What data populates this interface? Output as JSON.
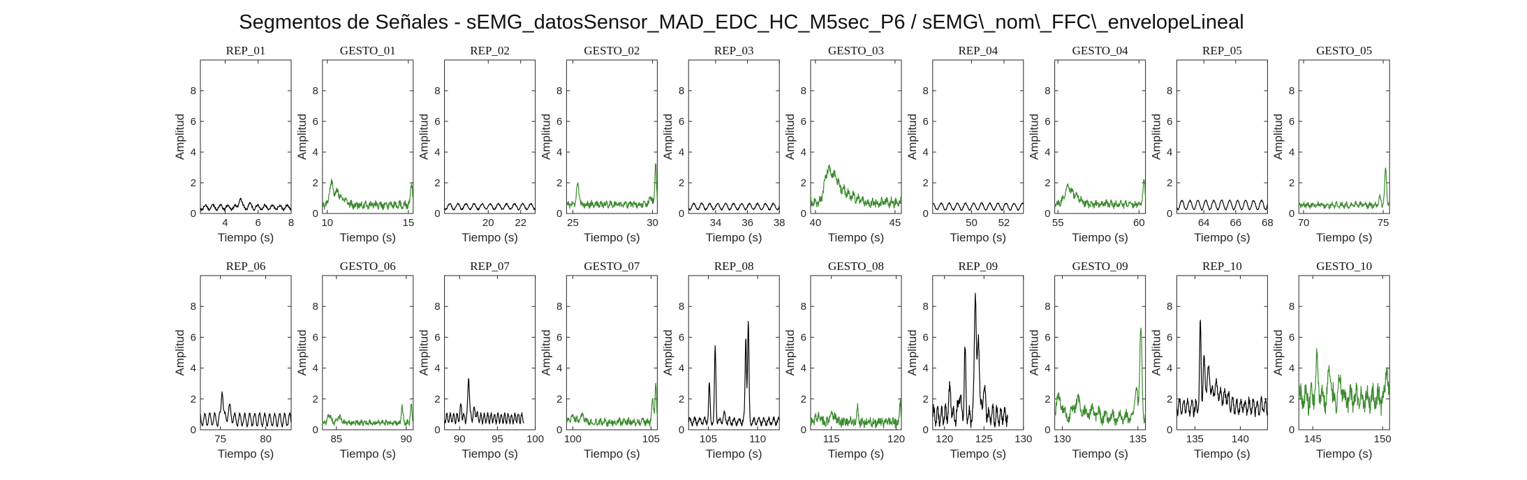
{
  "figure": {
    "title": "Segmentos de Señales - sEMG_datosSensor_MAD_EDC_HC_M5sec_P6 / sEMG\\_nom\\_FFC\\_envelopeLineal",
    "colors": {
      "rep": "#000000",
      "gesto": "#3b8a2e",
      "axis": "#262626"
    }
  },
  "chart_data": [
    {
      "type": "line",
      "subtitle": "REP_01",
      "xlabel": "Tiempo (s)",
      "ylabel": "Amplitud",
      "xlim": [
        2.5,
        8
      ],
      "ylim": [
        0,
        10
      ],
      "xticks": [
        4,
        6,
        8
      ],
      "yticks": [
        0,
        2,
        4,
        6,
        8
      ],
      "color": "rep",
      "series": [
        {
          "x": [
            2.5,
            8
          ],
          "base": 0.4,
          "amp": 0.15,
          "period": 0.45,
          "noise": 0.08,
          "peaks": [
            [
              4.9,
              1.05,
              0.08
            ],
            [
              5.5,
              0.55,
              0.1
            ]
          ]
        }
      ]
    },
    {
      "type": "line",
      "subtitle": "GESTO_01",
      "xlabel": "Tiempo (s)",
      "ylabel": "Amplitud",
      "xlim": [
        9.7,
        15.3
      ],
      "ylim": [
        0,
        10
      ],
      "xticks": [
        10,
        15
      ],
      "yticks": [
        0,
        2,
        4,
        6,
        8
      ],
      "color": "gesto",
      "series": [
        {
          "x": [
            9.7,
            15.3
          ],
          "base": 0.55,
          "amp": 0.12,
          "period": 0.3,
          "noise": 0.2,
          "peaks": [
            [
              10.25,
              1.9,
              0.12
            ],
            [
              10.6,
              1.4,
              0.15
            ],
            [
              11.0,
              0.9,
              0.2
            ],
            [
              15.2,
              2.0,
              0.06
            ]
          ]
        }
      ]
    },
    {
      "type": "line",
      "subtitle": "REP_02",
      "xlabel": "Tiempo (s)",
      "ylabel": "Amplitud",
      "xlim": [
        17.3,
        22.9
      ],
      "ylim": [
        0,
        10
      ],
      "xticks": [
        20,
        22
      ],
      "yticks": [
        0,
        2,
        4,
        6,
        8
      ],
      "color": "rep",
      "series": [
        {
          "x": [
            17.3,
            22.9
          ],
          "base": 0.45,
          "amp": 0.18,
          "period": 0.5,
          "noise": 0.05,
          "peaks": []
        }
      ]
    },
    {
      "type": "line",
      "subtitle": "GESTO_02",
      "xlabel": "Tiempo (s)",
      "ylabel": "Amplitud",
      "xlim": [
        24.6,
        30.3
      ],
      "ylim": [
        0,
        10
      ],
      "xticks": [
        25,
        30
      ],
      "yticks": [
        0,
        2,
        4,
        6,
        8
      ],
      "color": "gesto",
      "series": [
        {
          "x": [
            24.6,
            30.3
          ],
          "base": 0.6,
          "amp": 0.1,
          "period": 0.3,
          "noise": 0.18,
          "peaks": [
            [
              25.3,
              1.9,
              0.08
            ],
            [
              29.9,
              1.1,
              0.08
            ],
            [
              30.2,
              3.3,
              0.05
            ]
          ]
        }
      ]
    },
    {
      "type": "line",
      "subtitle": "REP_03",
      "xlabel": "Tiempo (s)",
      "ylabel": "Amplitud",
      "xlim": [
        32.3,
        38
      ],
      "ylim": [
        0,
        10
      ],
      "xticks": [
        34,
        36,
        38
      ],
      "yticks": [
        0,
        2,
        4,
        6,
        8
      ],
      "color": "rep",
      "series": [
        {
          "x": [
            32.3,
            38
          ],
          "base": 0.45,
          "amp": 0.2,
          "period": 0.5,
          "noise": 0.05,
          "peaks": []
        }
      ]
    },
    {
      "type": "line",
      "subtitle": "GESTO_03",
      "xlabel": "Tiempo (s)",
      "ylabel": "Amplitud",
      "xlim": [
        39.7,
        45.4
      ],
      "ylim": [
        0,
        10
      ],
      "xticks": [
        40,
        45
      ],
      "yticks": [
        0,
        2,
        4,
        6,
        8
      ],
      "color": "gesto",
      "series": [
        {
          "x": [
            39.7,
            45.4
          ],
          "base": 0.7,
          "amp": 0.15,
          "period": 0.3,
          "noise": 0.25,
          "peaks": [
            [
              40.75,
              2.5,
              0.2
            ],
            [
              41.2,
              2.2,
              0.25
            ],
            [
              41.8,
              1.4,
              0.3
            ],
            [
              42.5,
              1.0,
              0.3
            ]
          ]
        }
      ]
    },
    {
      "type": "line",
      "subtitle": "REP_04",
      "xlabel": "Tiempo (s)",
      "ylabel": "Amplitud",
      "xlim": [
        47.6,
        53.2
      ],
      "ylim": [
        0,
        10
      ],
      "xticks": [
        50,
        52
      ],
      "yticks": [
        0,
        2,
        4,
        6,
        8
      ],
      "color": "rep",
      "series": [
        {
          "x": [
            47.6,
            53.2
          ],
          "base": 0.45,
          "amp": 0.22,
          "period": 0.5,
          "noise": 0.04,
          "peaks": []
        }
      ]
    },
    {
      "type": "line",
      "subtitle": "GESTO_04",
      "xlabel": "Tiempo (s)",
      "ylabel": "Amplitud",
      "xlim": [
        54.8,
        60.4
      ],
      "ylim": [
        0,
        10
      ],
      "xticks": [
        55,
        60
      ],
      "yticks": [
        0,
        2,
        4,
        6,
        8
      ],
      "color": "gesto",
      "series": [
        {
          "x": [
            54.8,
            60.4
          ],
          "base": 0.6,
          "amp": 0.12,
          "period": 0.3,
          "noise": 0.2,
          "peaks": [
            [
              55.6,
              1.6,
              0.2
            ],
            [
              56.1,
              1.1,
              0.3
            ],
            [
              60.3,
              2.3,
              0.06
            ]
          ]
        }
      ]
    },
    {
      "type": "line",
      "subtitle": "REP_05",
      "xlabel": "Tiempo (s)",
      "ylabel": "Amplitud",
      "xlim": [
        62.3,
        68
      ],
      "ylim": [
        0,
        10
      ],
      "xticks": [
        64,
        66,
        68
      ],
      "yticks": [
        0,
        2,
        4,
        6,
        8
      ],
      "color": "rep",
      "series": [
        {
          "x": [
            62.3,
            68
          ],
          "base": 0.55,
          "amp": 0.3,
          "period": 0.5,
          "noise": 0.04,
          "peaks": []
        }
      ]
    },
    {
      "type": "line",
      "subtitle": "GESTO_05",
      "xlabel": "Tiempo (s)",
      "ylabel": "Amplitud",
      "xlim": [
        69.7,
        75.4
      ],
      "ylim": [
        0,
        10
      ],
      "xticks": [
        70,
        75
      ],
      "yticks": [
        0,
        2,
        4,
        6,
        8
      ],
      "color": "gesto",
      "series": [
        {
          "x": [
            69.7,
            75.4
          ],
          "base": 0.55,
          "amp": 0.1,
          "period": 0.3,
          "noise": 0.15,
          "peaks": [
            [
              75.15,
              2.9,
              0.06
            ],
            [
              74.8,
              1.0,
              0.06
            ]
          ]
        }
      ]
    },
    {
      "type": "line",
      "subtitle": "REP_06",
      "xlabel": "Tiempo (s)",
      "ylabel": "Amplitud",
      "xlim": [
        72.8,
        82.8
      ],
      "ylim": [
        0,
        10
      ],
      "xticks": [
        75,
        80
      ],
      "yticks": [
        0,
        2,
        4,
        6,
        8
      ],
      "color": "rep",
      "series": [
        {
          "x": [
            72.8,
            82.8
          ],
          "base": 0.65,
          "amp": 0.4,
          "period": 0.55,
          "noise": 0.08,
          "peaks": [
            [
              75.2,
              2.8,
              0.1
            ],
            [
              76.0,
              1.3,
              0.2
            ]
          ]
        }
      ]
    },
    {
      "type": "line",
      "subtitle": "GESTO_06",
      "xlabel": "Tiempo (s)",
      "ylabel": "Amplitud",
      "xlim": [
        84,
        90.5
      ],
      "ylim": [
        0,
        10
      ],
      "xticks": [
        85,
        90
      ],
      "yticks": [
        0,
        2,
        4,
        6,
        8
      ],
      "color": "gesto",
      "series": [
        {
          "x": [
            84,
            90.5
          ],
          "base": 0.45,
          "amp": 0.08,
          "period": 0.3,
          "noise": 0.15,
          "peaks": [
            [
              84.5,
              1.0,
              0.12
            ],
            [
              85.2,
              0.8,
              0.15
            ],
            [
              89.7,
              1.5,
              0.06
            ],
            [
              90.35,
              1.7,
              0.05
            ]
          ]
        }
      ]
    },
    {
      "type": "line",
      "subtitle": "REP_07",
      "xlabel": "Tiempo (s)",
      "ylabel": "Amplitud",
      "xlim": [
        88,
        100
      ],
      "ylim": [
        0,
        10
      ],
      "xticks": [
        90,
        95,
        100
      ],
      "yticks": [
        0,
        2,
        4,
        6,
        8
      ],
      "color": "rep",
      "series": [
        {
          "x": [
            88,
            98.5
          ],
          "base": 0.75,
          "amp": 0.3,
          "period": 0.45,
          "noise": 0.1,
          "peaks": [
            [
              90.2,
              1.5,
              0.1
            ],
            [
              91.2,
              3.5,
              0.1
            ],
            [
              92.0,
              1.2,
              0.2
            ]
          ]
        }
      ]
    },
    {
      "type": "line",
      "subtitle": "GESTO_07",
      "xlabel": "Tiempo (s)",
      "ylabel": "Amplitud",
      "xlim": [
        99.6,
        105.4
      ],
      "ylim": [
        0,
        10
      ],
      "xticks": [
        100,
        105
      ],
      "yticks": [
        0,
        2,
        4,
        6,
        8
      ],
      "color": "gesto",
      "series": [
        {
          "x": [
            99.6,
            105.4
          ],
          "base": 0.5,
          "amp": 0.1,
          "period": 0.3,
          "noise": 0.2,
          "peaks": [
            [
              100.0,
              0.9,
              0.15
            ],
            [
              100.6,
              0.9,
              0.15
            ],
            [
              105.1,
              1.8,
              0.06
            ],
            [
              105.3,
              2.9,
              0.05
            ]
          ]
        }
      ]
    },
    {
      "type": "line",
      "subtitle": "REP_08",
      "xlabel": "Tiempo (s)",
      "ylabel": "Amplitud",
      "xlim": [
        103,
        112.2
      ],
      "ylim": [
        0,
        10
      ],
      "xticks": [
        105,
        110
      ],
      "yticks": [
        0,
        2,
        4,
        6,
        8
      ],
      "color": "rep",
      "series": [
        {
          "x": [
            103,
            112.2
          ],
          "base": 0.55,
          "amp": 0.2,
          "period": 0.5,
          "noise": 0.12,
          "peaks": [
            [
              105.1,
              2.9,
              0.07
            ],
            [
              105.7,
              5.3,
              0.07
            ],
            [
              108.8,
              6.1,
              0.07
            ],
            [
              109.05,
              6.9,
              0.07
            ],
            [
              106.6,
              1.0,
              0.1
            ]
          ]
        }
      ]
    },
    {
      "type": "line",
      "subtitle": "GESTO_08",
      "xlabel": "Tiempo (s)",
      "ylabel": "Amplitud",
      "xlim": [
        113.4,
        120.4
      ],
      "ylim": [
        0,
        10
      ],
      "xticks": [
        115,
        120
      ],
      "yticks": [
        0,
        2,
        4,
        6,
        8
      ],
      "color": "gesto",
      "series": [
        {
          "x": [
            113.4,
            120.4
          ],
          "base": 0.5,
          "amp": 0.1,
          "period": 0.3,
          "noise": 0.3,
          "peaks": [
            [
              114.0,
              1.0,
              0.15
            ],
            [
              115.1,
              0.9,
              0.2
            ],
            [
              117.0,
              1.7,
              0.06
            ],
            [
              120.3,
              1.8,
              0.05
            ]
          ]
        }
      ]
    },
    {
      "type": "line",
      "subtitle": "REP_09",
      "xlabel": "Tiempo (s)",
      "ylabel": "Amplitud",
      "xlim": [
        118.5,
        130
      ],
      "ylim": [
        0,
        10
      ],
      "xticks": [
        120,
        125,
        130
      ],
      "yticks": [
        0,
        2,
        4,
        6,
        8
      ],
      "color": "rep",
      "series": [
        {
          "x": [
            118.5,
            128
          ],
          "base": 0.9,
          "amp": 0.5,
          "period": 0.5,
          "noise": 0.3,
          "peaks": [
            [
              120.7,
              2.5,
              0.15
            ],
            [
              121.9,
              2.3,
              0.15
            ],
            [
              122.6,
              5.0,
              0.1
            ],
            [
              123.9,
              9.2,
              0.12
            ],
            [
              124.3,
              6.2,
              0.12
            ],
            [
              125.0,
              2.5,
              0.2
            ]
          ]
        }
      ]
    },
    {
      "type": "line",
      "subtitle": "GESTO_09",
      "xlabel": "Tiempo (s)",
      "ylabel": "Amplitud",
      "xlim": [
        129.5,
        135.5
      ],
      "ylim": [
        0,
        10
      ],
      "xticks": [
        130,
        135
      ],
      "yticks": [
        0,
        2,
        4,
        6,
        8
      ],
      "color": "gesto",
      "series": [
        {
          "x": [
            129.5,
            135.5
          ],
          "base": 0.8,
          "amp": 0.3,
          "period": 0.45,
          "noise": 0.3,
          "peaks": [
            [
              129.8,
              2.0,
              0.2
            ],
            [
              131.0,
              1.8,
              0.25
            ],
            [
              132.0,
              1.2,
              0.3
            ],
            [
              135.2,
              6.7,
              0.07
            ],
            [
              134.9,
              3.0,
              0.08
            ]
          ]
        }
      ]
    },
    {
      "type": "line",
      "subtitle": "REP_10",
      "xlabel": "Tiempo (s)",
      "ylabel": "Amplitud",
      "xlim": [
        133,
        143
      ],
      "ylim": [
        0,
        10
      ],
      "xticks": [
        135,
        140
      ],
      "yticks": [
        0,
        2,
        4,
        6,
        8
      ],
      "color": "rep",
      "series": [
        {
          "x": [
            133,
            143
          ],
          "base": 1.5,
          "amp": 0.45,
          "period": 0.45,
          "noise": 0.25,
          "peaks": [
            [
              135.1,
              1.4,
              0.2
            ],
            [
              135.6,
              6.7,
              0.08
            ],
            [
              136.0,
              4.1,
              0.12
            ],
            [
              136.5,
              3.8,
              0.2
            ],
            [
              137.3,
              2.8,
              0.3
            ],
            [
              138.3,
              2.2,
              0.4
            ]
          ]
        }
      ]
    },
    {
      "type": "line",
      "subtitle": "GESTO_10",
      "xlabel": "Tiempo (s)",
      "ylabel": "Amplitud",
      "xlim": [
        144,
        150.5
      ],
      "ylim": [
        0,
        10
      ],
      "xticks": [
        145,
        150
      ],
      "yticks": [
        0,
        2,
        4,
        6,
        8
      ],
      "color": "gesto",
      "series": [
        {
          "x": [
            144,
            150.5
          ],
          "base": 2.0,
          "amp": 0.5,
          "period": 0.4,
          "noise": 0.6,
          "peaks": [
            [
              145.3,
              4.5,
              0.08
            ],
            [
              146.2,
              4.1,
              0.1
            ],
            [
              147.0,
              3.2,
              0.12
            ],
            [
              150.3,
              4.4,
              0.07
            ]
          ]
        }
      ]
    }
  ]
}
